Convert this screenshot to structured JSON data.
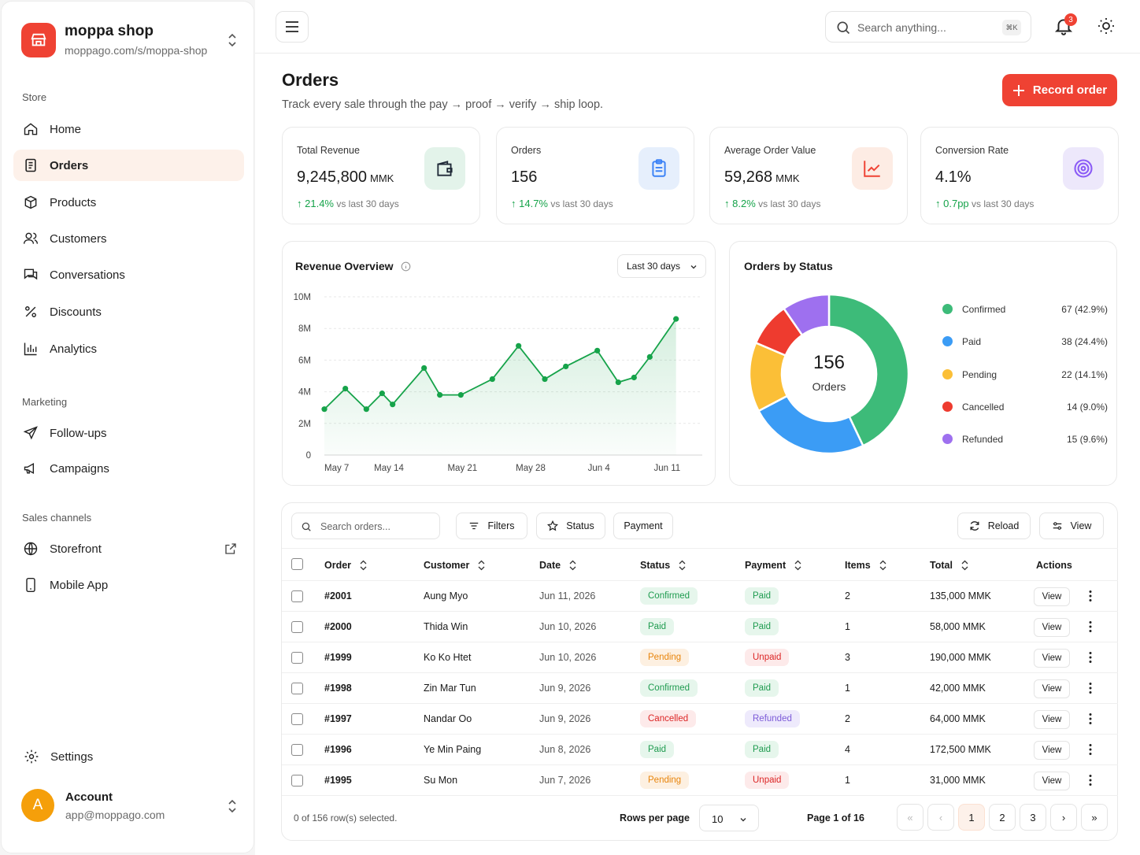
{
  "shop": {
    "name": "moppa shop",
    "url": "moppago.com/s/moppa-shop"
  },
  "nav": {
    "store_label": "Store",
    "store": [
      "Home",
      "Orders",
      "Products",
      "Customers",
      "Conversations",
      "Discounts",
      "Analytics"
    ],
    "marketing_label": "Marketing",
    "marketing": [
      "Follow-ups",
      "Campaigns"
    ],
    "channels_label": "Sales channels",
    "channels": [
      "Storefront",
      "Mobile App"
    ],
    "settings": "Settings"
  },
  "account": {
    "initial": "A",
    "name": "Account",
    "email": "app@moppago.com"
  },
  "topbar": {
    "search_placeholder": "Search anything...",
    "shortcut": "⌘K",
    "notifications": "3"
  },
  "page": {
    "title": "Orders",
    "subtitle": "Track every sale through the pay → proof → verify → ship loop.",
    "record_button": "Record order"
  },
  "kpis": [
    {
      "label": "Total Revenue",
      "value": "9,245,800",
      "unit": "MMK",
      "change": "21.4%",
      "note": "vs last 30 days",
      "icon": "wallet-icon",
      "color": "#16a34a",
      "bg": "#e3f3ea"
    },
    {
      "label": "Orders",
      "value": "156",
      "unit": "",
      "change": "14.7%",
      "note": "vs last 30 days",
      "icon": "clipboard-icon",
      "color": "#3b82f6",
      "bg": "#e6effc"
    },
    {
      "label": "Average Order Value",
      "value": "59,268",
      "unit": "MMK",
      "change": "8.2%",
      "note": "vs last 30 days",
      "icon": "trend-chart-icon",
      "color": "#ef4233",
      "bg": "#fdece4"
    },
    {
      "label": "Conversion Rate",
      "value": "4.1%",
      "unit": "",
      "change": "0.7pp",
      "note": "vs last 30 days",
      "icon": "target-icon",
      "color": "#8b5cf6",
      "bg": "#ede8fb"
    }
  ],
  "revenue": {
    "title": "Revenue Overview",
    "range": "Last 30 days"
  },
  "status_chart": {
    "title": "Orders by Status",
    "total": "156",
    "total_label": "Orders"
  },
  "chart_data": [
    {
      "type": "area",
      "title": "Revenue Overview",
      "y_ticks": [
        "10M",
        "8M",
        "6M",
        "4M",
        "2M",
        "0"
      ],
      "x_ticks": [
        "May 7",
        "May 14",
        "May 21",
        "May 28",
        "Jun 4",
        "Jun 11"
      ],
      "ylim": [
        0,
        10
      ],
      "xlim": [
        0,
        36
      ],
      "grid": true,
      "color": "#16a34a",
      "x": [
        0,
        2,
        4,
        5.5,
        6.5,
        9.5,
        11,
        13,
        16,
        18.5,
        21,
        23,
        26,
        28,
        29.5,
        31,
        33.5
      ],
      "y": [
        2.9,
        4.2,
        2.9,
        3.9,
        3.2,
        5.5,
        3.8,
        3.8,
        4.8,
        6.9,
        4.8,
        5.6,
        6.6,
        4.6,
        4.9,
        6.2,
        8.6
      ]
    },
    {
      "type": "pie",
      "title": "Orders by Status",
      "series": [
        {
          "name": "Confirmed",
          "value": 67,
          "label": "67 (42.9%)",
          "color": "#3dbb79"
        },
        {
          "name": "Paid",
          "value": 38,
          "label": "38 (24.4%)",
          "color": "#3b9cf5"
        },
        {
          "name": "Pending",
          "value": 22,
          "label": "22 (14.1%)",
          "color": "#fbbf37"
        },
        {
          "name": "Cancelled",
          "value": 14,
          "label": "14 (9.0%)",
          "color": "#ee3b2f"
        },
        {
          "name": "Refunded",
          "value": 15,
          "label": "15 (9.6%)",
          "color": "#9e70ef"
        }
      ]
    }
  ],
  "table": {
    "search_placeholder": "Search orders...",
    "filters": "Filters",
    "status": "Status",
    "payment": "Payment",
    "reload": "Reload",
    "view": "View",
    "columns": [
      "Order",
      "Customer",
      "Date",
      "Status",
      "Payment",
      "Items",
      "Total",
      "Actions"
    ],
    "rows": [
      [
        "#2001",
        "Aung Myo",
        "Jun 11, 2026",
        "Confirmed",
        "Paid",
        "2",
        "135,000 MMK"
      ],
      [
        "#2000",
        "Thida Win",
        "Jun 10, 2026",
        "Paid",
        "Paid",
        "1",
        "58,000 MMK"
      ],
      [
        "#1999",
        "Ko Ko Htet",
        "Jun 10, 2026",
        "Pending",
        "Unpaid",
        "3",
        "190,000 MMK"
      ],
      [
        "#1998",
        "Zin Mar Tun",
        "Jun 9, 2026",
        "Confirmed",
        "Paid",
        "1",
        "42,000 MMK"
      ],
      [
        "#1997",
        "Nandar Oo",
        "Jun 9, 2026",
        "Cancelled",
        "Refunded",
        "2",
        "64,000 MMK"
      ],
      [
        "#1996",
        "Ye Min Paing",
        "Jun 8, 2026",
        "Paid",
        "Paid",
        "4",
        "172,500 MMK"
      ],
      [
        "#1995",
        "Su Mon",
        "Jun 7, 2026",
        "Pending",
        "Unpaid",
        "1",
        "31,000 MMK"
      ]
    ],
    "row_action": "View",
    "selected_text": "0 of 156 row(s) selected.",
    "rows_per_page_label": "Rows per page",
    "rows_per_page": "10",
    "page_text": "Page 1 of 16",
    "pages": [
      "1",
      "2",
      "3"
    ]
  }
}
